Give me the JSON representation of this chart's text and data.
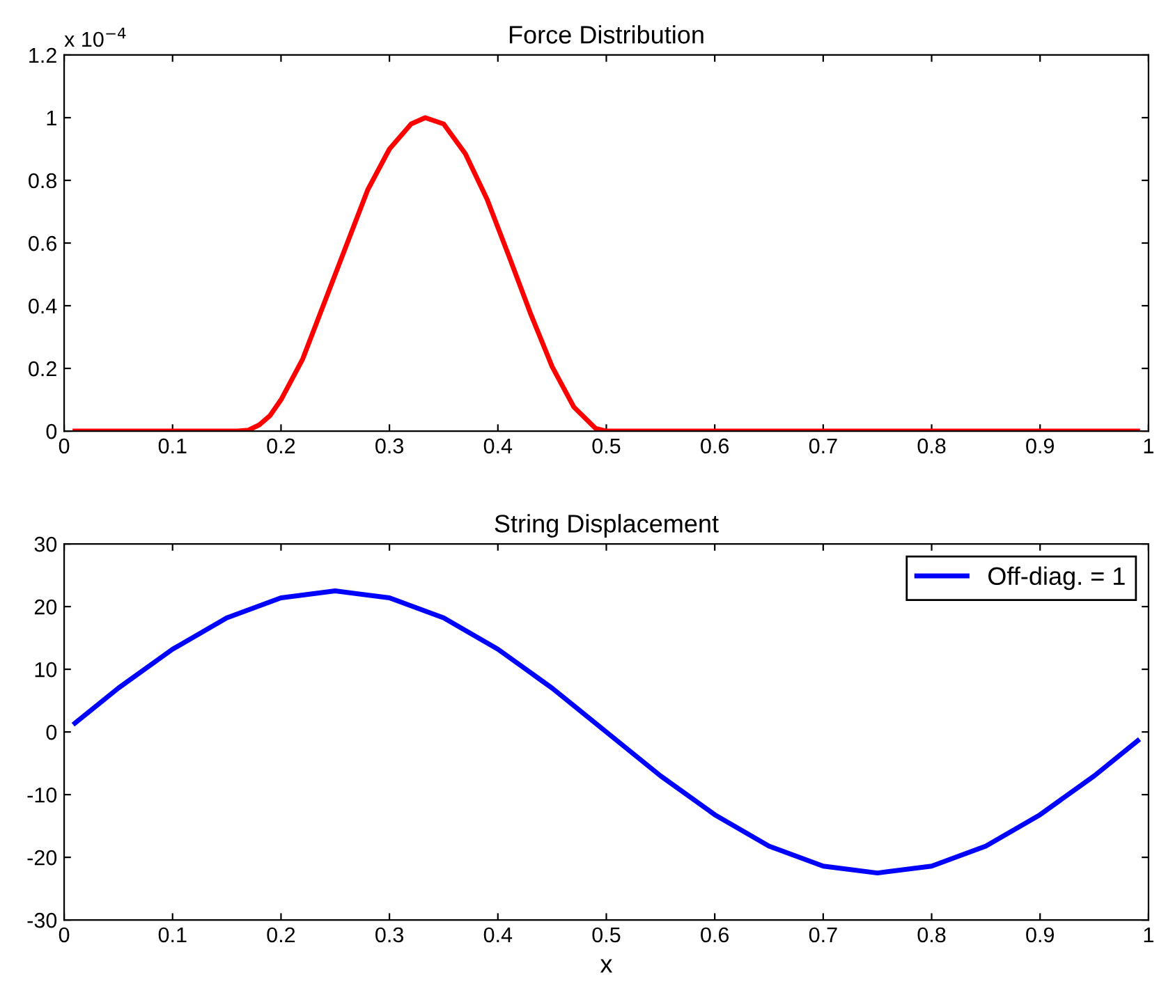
{
  "chart_data": [
    {
      "type": "line",
      "title": "Force Distribution",
      "annotations": [
        "x 10$^{−4}$"
      ],
      "xlim": [
        0,
        1
      ],
      "xticks": [
        0,
        0.1,
        0.2,
        0.3,
        0.4,
        0.5,
        0.6,
        0.7,
        0.8,
        0.9,
        1
      ],
      "ylim": [
        0,
        1.2
      ],
      "yticks": [
        0,
        0.2,
        0.4,
        0.6,
        0.8,
        1,
        1.2
      ],
      "grid": false,
      "legend": false,
      "x": [
        0.01,
        0.16,
        0.17,
        0.18,
        0.19,
        0.2,
        0.22,
        0.24,
        0.26,
        0.28,
        0.3,
        0.32,
        0.333,
        0.35,
        0.37,
        0.39,
        0.41,
        0.43,
        0.45,
        0.47,
        0.49,
        0.5,
        0.99
      ],
      "series": [
        {
          "color": "#ff0000",
          "values": [
            0,
            0,
            0.003,
            0.02,
            0.05,
            0.1,
            0.23,
            0.41,
            0.59,
            0.77,
            0.9,
            0.98,
            1,
            0.98,
            0.885,
            0.74,
            0.56,
            0.376,
            0.206,
            0.077,
            0.009,
            0,
            0
          ]
        }
      ]
    },
    {
      "type": "line",
      "title": "String Displacement",
      "xlabel": "x",
      "xlim": [
        0,
        1
      ],
      "xticks": [
        0,
        0.1,
        0.2,
        0.3,
        0.4,
        0.5,
        0.6,
        0.7,
        0.8,
        0.9,
        1
      ],
      "ylim": [
        -30,
        30
      ],
      "yticks": [
        -30,
        -20,
        -10,
        0,
        10,
        20,
        30
      ],
      "grid": false,
      "legend": "top right",
      "x": [
        0.01,
        0.05,
        0.1,
        0.15,
        0.2,
        0.25,
        0.3,
        0.35,
        0.4,
        0.45,
        0.5,
        0.55,
        0.6,
        0.65,
        0.7,
        0.75,
        0.8,
        0.85,
        0.9,
        0.95,
        0.99
      ],
      "series": [
        {
          "name": "Off-diag. = 1",
          "color": "#0000ff",
          "values": [
            1.4,
            7,
            13.2,
            18.2,
            21.4,
            22.5,
            21.4,
            18.2,
            13.2,
            7,
            0,
            -7,
            -13.2,
            -18.2,
            -21.4,
            -22.5,
            -21.4,
            -18.2,
            -13.2,
            -7,
            -1.4
          ]
        }
      ]
    }
  ]
}
